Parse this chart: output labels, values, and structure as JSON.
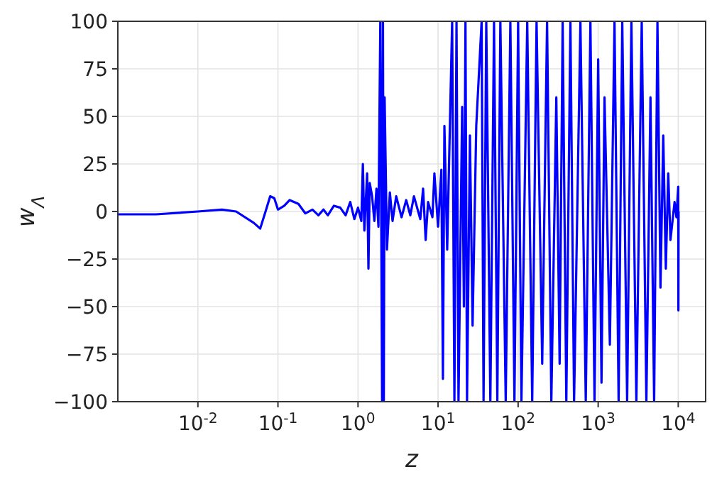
{
  "chart_data": {
    "type": "line",
    "xlabel": "z",
    "ylabel": "w$_{Λ}$",
    "log": "x",
    "grid": true,
    "xlim": [
      0.001,
      22000
    ],
    "ylim": [
      -100,
      100
    ],
    "xticks": [
      {
        "value": 0.01,
        "label": "10$^{-2}$"
      },
      {
        "value": 0.1,
        "label": "10$^{-1}$"
      },
      {
        "value": 1,
        "label": "10$^{0}$"
      },
      {
        "value": 10,
        "label": "10$^{1}$"
      },
      {
        "value": 100,
        "label": "10$^{2}$"
      },
      {
        "value": 1000,
        "label": "10$^{3}$"
      },
      {
        "value": 10000,
        "label": "10$^{4}$"
      }
    ],
    "yticks": [
      -100,
      -75,
      -50,
      -25,
      0,
      25,
      50,
      75,
      100
    ],
    "x": [
      0.001,
      0.003,
      0.01,
      0.02,
      0.03,
      0.05,
      0.06,
      0.07,
      0.08,
      0.09,
      0.1,
      0.12,
      0.14,
      0.18,
      0.22,
      0.27,
      0.32,
      0.37,
      0.42,
      0.5,
      0.6,
      0.7,
      0.8,
      0.9,
      1.0,
      1.1,
      1.15,
      1.2,
      1.3,
      1.35,
      1.4,
      1.5,
      1.6,
      1.7,
      1.8,
      1.9,
      2.0,
      2.05,
      2.1,
      2.15,
      2.3,
      2.5,
      2.7,
      3,
      3.5,
      4,
      4.5,
      5,
      6,
      6.5,
      7,
      7.5,
      8.5,
      9,
      10,
      11,
      11.5,
      12,
      13,
      15,
      16,
      17,
      18,
      20,
      21,
      22,
      23,
      25,
      27,
      30,
      35,
      37,
      40,
      45,
      50,
      55,
      60,
      70,
      80,
      90,
      100,
      110,
      130,
      150,
      170,
      200,
      230,
      260,
      300,
      330,
      360,
      400,
      450,
      500,
      600,
      700,
      800,
      900,
      1000,
      1100,
      1200,
      1400,
      1600,
      1800,
      2000,
      2300,
      2600,
      3000,
      3500,
      4000,
      4500,
      5000,
      5500,
      6000,
      6500,
      7000,
      7500,
      8000,
      9000,
      9500,
      10000,
      10050,
      10100
    ],
    "series": [
      {
        "color": "#0000ff",
        "values": [
          -1.5,
          -1.5,
          0,
          1,
          0,
          -6,
          -9,
          0,
          8,
          7,
          1,
          3,
          6,
          4,
          -1,
          1,
          -2,
          1,
          -2,
          3,
          2,
          -2,
          5,
          -4,
          2,
          -5,
          25,
          -10,
          20,
          -30,
          15,
          8,
          -5,
          12,
          -8,
          100,
          -100,
          100,
          -100,
          60,
          -20,
          10,
          -5,
          8,
          -3,
          6,
          -2,
          8,
          -4,
          12,
          -15,
          5,
          -3,
          20,
          -8,
          22,
          -88,
          45,
          -20,
          100,
          -100,
          100,
          -100,
          55,
          -50,
          100,
          -100,
          40,
          -60,
          45,
          100,
          -100,
          100,
          -100,
          100,
          -100,
          100,
          -100,
          100,
          -100,
          100,
          -100,
          100,
          -100,
          100,
          -80,
          100,
          -100,
          60,
          -80,
          100,
          -100,
          100,
          -100,
          100,
          -100,
          100,
          -100,
          80,
          -90,
          60,
          -70,
          100,
          -100,
          100,
          -100,
          100,
          -100,
          100,
          -100,
          60,
          -100,
          100,
          -40,
          40,
          -30,
          20,
          -15,
          5,
          -3,
          13,
          -52,
          0
        ]
      }
    ]
  }
}
